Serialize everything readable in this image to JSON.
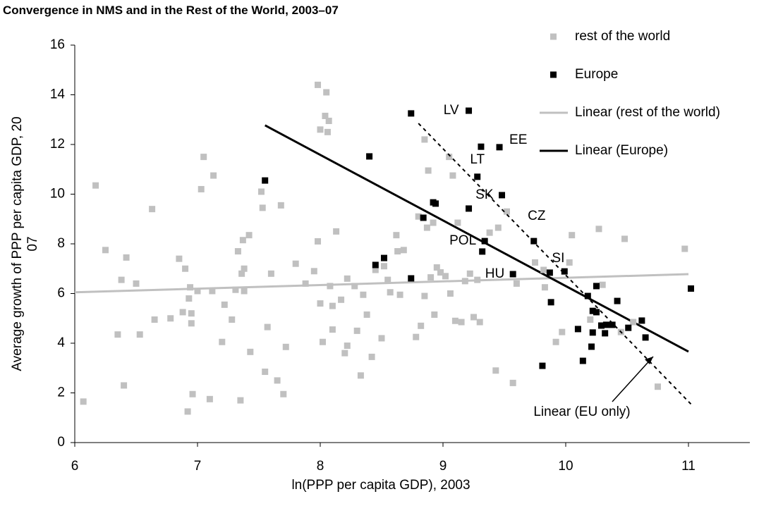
{
  "chart_data": {
    "type": "scatter",
    "title": "Convergence in NMS and in the Rest of the World, 2003–07",
    "xlabel": "ln(PPP per capita GDP), 2003",
    "ylabel": [
      "Average growth of PPP per capita GDP, 20",
      "07"
    ],
    "xlim": [
      6,
      11.5
    ],
    "ylim": [
      0,
      16
    ],
    "xticks": [
      6,
      7,
      8,
      9,
      10,
      11
    ],
    "yticks": [
      0,
      2,
      4,
      6,
      8,
      10,
      12,
      14,
      16
    ],
    "grid": false,
    "legend": "top-right",
    "series": [
      {
        "name": "rest of the world",
        "type": "scatter",
        "color": "#c0c0c0",
        "x": [
          6.07,
          6.17,
          6.25,
          6.35,
          6.38,
          6.4,
          6.42,
          6.5,
          6.53,
          6.63,
          6.65,
          6.78,
          6.85,
          6.88,
          6.9,
          6.92,
          6.93,
          6.94,
          6.95,
          6.95,
          6.96,
          7.0,
          7.03,
          7.05,
          7.1,
          7.12,
          7.13,
          7.2,
          7.22,
          7.28,
          7.31,
          7.33,
          7.35,
          7.36,
          7.37,
          7.38,
          7.38,
          7.42,
          7.43,
          7.52,
          7.53,
          7.57,
          7.55,
          7.6,
          7.65,
          7.68,
          7.7,
          7.72,
          7.8,
          7.88,
          7.95,
          7.98,
          7.98,
          8.0,
          8.0,
          8.02,
          8.04,
          8.05,
          8.06,
          8.07,
          8.08,
          8.1,
          8.1,
          8.13,
          8.17,
          8.2,
          8.22,
          8.22,
          8.28,
          8.3,
          8.33,
          8.35,
          8.38,
          8.42,
          8.45,
          8.5,
          8.52,
          8.55,
          8.57,
          8.62,
          8.63,
          8.65,
          8.68,
          8.78,
          8.8,
          8.82,
          8.85,
          8.85,
          8.87,
          8.88,
          8.9,
          8.92,
          8.93,
          8.95,
          8.98,
          9.02,
          9.05,
          9.06,
          9.08,
          9.1,
          9.12,
          9.15,
          9.18,
          9.22,
          9.25,
          9.28,
          9.3,
          9.38,
          9.43,
          9.45,
          9.52,
          9.57,
          9.6,
          9.75,
          9.82,
          9.83,
          9.92,
          9.97,
          10.03,
          10.05,
          10.2,
          10.27,
          10.3,
          10.45,
          10.48,
          10.75,
          10.97,
          10.55
        ],
        "values": [
          1.65,
          10.35,
          7.75,
          4.35,
          6.55,
          2.3,
          7.45,
          6.4,
          4.35,
          9.4,
          4.95,
          5.0,
          7.4,
          5.25,
          7.0,
          1.25,
          5.8,
          6.25,
          5.2,
          4.8,
          1.95,
          6.1,
          10.2,
          11.5,
          1.75,
          6.1,
          10.75,
          4.05,
          5.55,
          4.95,
          6.15,
          7.7,
          1.7,
          6.8,
          8.15,
          7.0,
          6.1,
          8.35,
          3.65,
          10.1,
          9.45,
          4.65,
          2.85,
          6.8,
          2.5,
          9.55,
          1.95,
          3.85,
          7.2,
          6.4,
          6.9,
          14.4,
          8.1,
          12.6,
          5.6,
          4.05,
          13.15,
          14.1,
          12.5,
          12.95,
          6.3,
          5.5,
          4.55,
          8.5,
          5.75,
          3.6,
          3.9,
          6.6,
          6.3,
          4.5,
          2.7,
          5.95,
          5.15,
          3.45,
          6.95,
          4.2,
          7.1,
          6.55,
          6.05,
          8.35,
          7.7,
          5.95,
          7.75,
          4.25,
          9.1,
          4.7,
          12.2,
          5.9,
          8.65,
          10.95,
          6.65,
          8.85,
          5.15,
          7.05,
          6.85,
          6.7,
          11.5,
          6.0,
          10.75,
          4.9,
          8.85,
          4.85,
          6.5,
          6.8,
          5.05,
          6.55,
          4.85,
          8.45,
          2.9,
          8.65,
          9.3,
          2.4,
          6.4,
          7.25,
          6.95,
          6.25,
          4.05,
          4.45,
          7.25,
          8.35,
          4.95,
          8.6,
          6.35,
          4.45,
          8.2,
          2.25,
          7.8,
          4.85
        ]
      },
      {
        "name": "Europe",
        "type": "scatter",
        "color": "#000000",
        "x": [
          8.74,
          9.21,
          8.4,
          9.31,
          9.46,
          9.28,
          9.48,
          7.55,
          8.92,
          8.94,
          9.21,
          8.84,
          9.74,
          9.34,
          9.32,
          8.52,
          8.45,
          8.74,
          9.57,
          9.99,
          9.87,
          9.88,
          10.18,
          10.25,
          10.42,
          10.1,
          10.22,
          10.25,
          10.22,
          10.29,
          10.33,
          10.38,
          10.32,
          10.51,
          10.62,
          10.65,
          10.21,
          10.14,
          9.81,
          11.02
        ],
        "values": [
          13.25,
          13.36,
          11.52,
          11.91,
          11.89,
          10.7,
          9.96,
          10.55,
          9.67,
          9.62,
          9.42,
          9.05,
          8.11,
          8.11,
          7.69,
          7.43,
          7.15,
          6.61,
          6.78,
          6.89,
          6.84,
          5.65,
          5.9,
          6.3,
          5.7,
          4.57,
          5.3,
          5.25,
          4.43,
          4.71,
          4.74,
          4.74,
          4.4,
          4.62,
          4.91,
          4.23,
          3.86,
          3.29,
          3.09,
          6.2
        ],
        "point_labels": [
          null,
          "LV",
          null,
          null,
          "EE",
          "LT",
          "SK",
          null,
          null,
          null,
          null,
          null,
          "CZ",
          "POL",
          null,
          null,
          null,
          null,
          "HU",
          null,
          "SI",
          null,
          null,
          null,
          null,
          null,
          null,
          null,
          null,
          null,
          null,
          null,
          null,
          null,
          null,
          null,
          null,
          null,
          null,
          null
        ]
      },
      {
        "name": "Linear (rest of the world)",
        "type": "line",
        "color": "#c0c0c0",
        "x": [
          6,
          11
        ],
        "values": [
          6.05,
          6.78
        ]
      },
      {
        "name": "Linear (Europe)",
        "type": "line",
        "color": "#000000",
        "x": [
          7.55,
          11.0
        ],
        "values": [
          12.77,
          3.66
        ]
      }
    ],
    "annotations": [
      {
        "text": "Linear (EU only)",
        "type": "dashed-line",
        "color": "#000000",
        "x": [
          8.8,
          11.02
        ],
        "values": [
          12.85,
          1.55
        ]
      }
    ]
  }
}
